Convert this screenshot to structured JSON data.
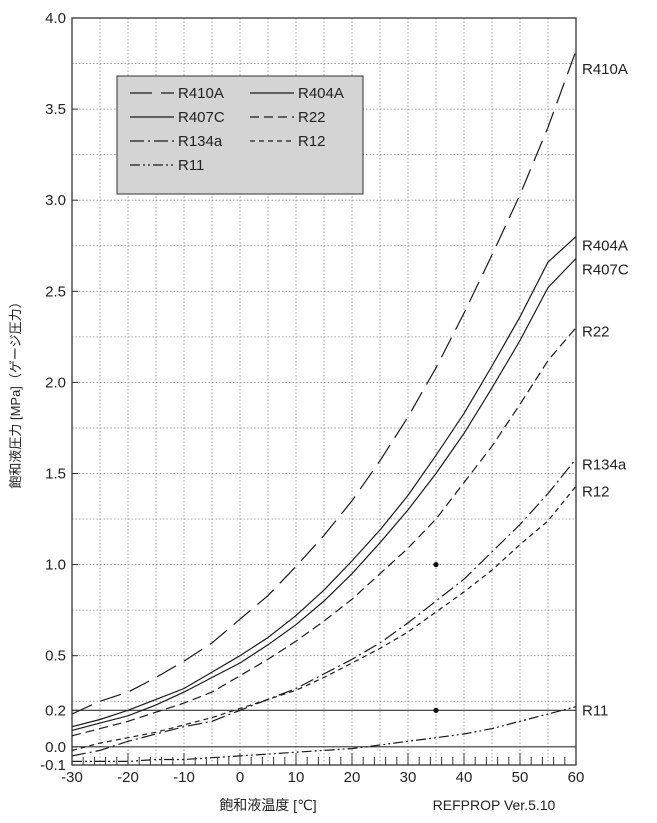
{
  "chart_data": {
    "type": "line",
    "title": "",
    "xlabel": "飽和液温度 [℃]",
    "ylabel": "飽和液圧力 [MPa]（ゲージ圧力）",
    "source_note": "REFPROP Ver.5.10",
    "xlim": [
      -30,
      60
    ],
    "ylim": [
      -0.1,
      4.0
    ],
    "x_ticks": [
      -30,
      -20,
      -10,
      0,
      10,
      20,
      30,
      40,
      50,
      60
    ],
    "y_ticks": [
      {
        "value": -0.1,
        "label": "-0.1"
      },
      {
        "value": 0.0,
        "label": "0.0"
      },
      {
        "value": 0.2,
        "label": "0.2"
      },
      {
        "value": 0.5,
        "label": "0.5"
      },
      {
        "value": 1.0,
        "label": "1.0"
      },
      {
        "value": 1.5,
        "label": "1.5"
      },
      {
        "value": 2.0,
        "label": "2.0"
      },
      {
        "value": 2.5,
        "label": "2.5"
      },
      {
        "value": 3.0,
        "label": "3.0"
      },
      {
        "value": 3.5,
        "label": "3.5"
      },
      {
        "value": 4.0,
        "label": "4.0"
      }
    ],
    "grid": true,
    "reference_lines": [
      0.0,
      0.2
    ],
    "marked_points": [
      {
        "x": 35,
        "y": 1.0
      },
      {
        "x": 35,
        "y": 0.2
      }
    ],
    "legend": {
      "placement": "top-left",
      "background": "#d4d4d4",
      "items": [
        "R410A",
        "R404A",
        "R407C",
        "R22",
        "R134a",
        "R12",
        "R11"
      ]
    },
    "x": [
      -30,
      -25,
      -20,
      -15,
      -10,
      -5,
      0,
      5,
      10,
      15,
      20,
      25,
      30,
      35,
      40,
      45,
      50,
      55,
      60
    ],
    "series": [
      {
        "name": "R410A",
        "dash": "22,9",
        "values": [
          0.18,
          0.25,
          0.3,
          0.38,
          0.47,
          0.57,
          0.7,
          0.83,
          0.99,
          1.16,
          1.35,
          1.57,
          1.81,
          2.08,
          2.38,
          2.7,
          3.03,
          3.4,
          3.82
        ]
      },
      {
        "name": "R404A",
        "dash": "",
        "values": [
          0.11,
          0.15,
          0.2,
          0.26,
          0.32,
          0.41,
          0.5,
          0.6,
          0.72,
          0.86,
          1.02,
          1.19,
          1.38,
          1.6,
          1.83,
          2.09,
          2.36,
          2.66,
          2.8
        ]
      },
      {
        "name": "R407C",
        "dash": "",
        "values": [
          0.09,
          0.13,
          0.17,
          0.23,
          0.3,
          0.38,
          0.46,
          0.56,
          0.67,
          0.8,
          0.95,
          1.12,
          1.3,
          1.5,
          1.72,
          1.97,
          2.23,
          2.52,
          2.68
        ]
      },
      {
        "name": "R22",
        "dash": "9,5",
        "values": [
          0.06,
          0.1,
          0.14,
          0.19,
          0.24,
          0.3,
          0.39,
          0.48,
          0.58,
          0.69,
          0.81,
          0.95,
          1.09,
          1.25,
          1.45,
          1.65,
          1.88,
          2.12,
          2.3
        ]
      },
      {
        "name": "R134a",
        "dash": "14,4,2,4",
        "values": [
          -0.05,
          -0.02,
          0.03,
          0.07,
          0.11,
          0.14,
          0.2,
          0.26,
          0.32,
          0.4,
          0.48,
          0.57,
          0.68,
          0.8,
          0.92,
          1.07,
          1.22,
          1.39,
          1.58
        ]
      },
      {
        "name": "R12",
        "dash": "5,4",
        "values": [
          -0.02,
          0.02,
          0.05,
          0.08,
          0.12,
          0.16,
          0.21,
          0.26,
          0.31,
          0.38,
          0.46,
          0.54,
          0.63,
          0.74,
          0.85,
          0.97,
          1.11,
          1.24,
          1.43
        ]
      },
      {
        "name": "R11",
        "dash": "10,3,2,3,2,3",
        "values": [
          -0.08,
          -0.08,
          -0.08,
          -0.07,
          -0.07,
          -0.06,
          -0.05,
          -0.04,
          -0.03,
          -0.02,
          -0.01,
          0.01,
          0.03,
          0.05,
          0.07,
          0.1,
          0.14,
          0.18,
          0.22
        ]
      }
    ]
  }
}
